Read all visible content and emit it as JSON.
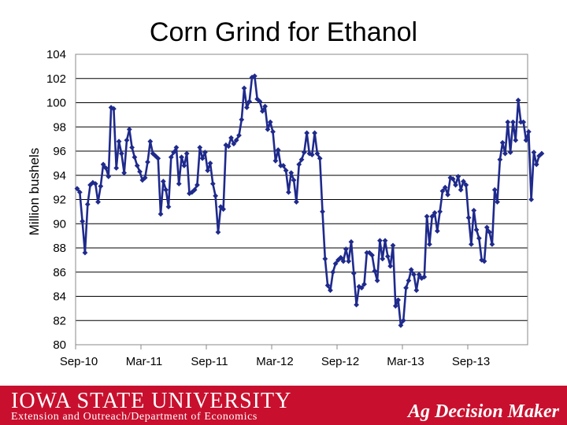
{
  "chart_data": {
    "type": "line",
    "title": "Corn Grind for Ethanol",
    "xlabel": "",
    "ylabel": "Million bushels",
    "ylim": [
      80,
      104
    ],
    "yticks": [
      80,
      82,
      84,
      86,
      88,
      90,
      92,
      94,
      96,
      98,
      100,
      102,
      104
    ],
    "xticks": [
      "Sep-10",
      "Mar-11",
      "Sep-11",
      "Mar-12",
      "Sep-12",
      "Mar-13",
      "Sep-13"
    ],
    "x_range_weeks": [
      0,
      172
    ],
    "grid": "horizontal",
    "series_color": "#1f2a8c",
    "series": [
      {
        "values": [
          92.9,
          92.6,
          90.2,
          87.6,
          91.6,
          93.2,
          93.4,
          93.3,
          91.8,
          93.1,
          94.9,
          94.6,
          93.9,
          99.6,
          99.5,
          94.6,
          96.8,
          95.8,
          94.2,
          96.9,
          97.8,
          96.3,
          95.5,
          94.8,
          94.3,
          93.6,
          93.8,
          95.1,
          96.8,
          95.8,
          95.6,
          95.4,
          90.8,
          93.5,
          92.8,
          91.4,
          95.5,
          95.9,
          96.3,
          93.3,
          95.5,
          94.8,
          95.8,
          92.5,
          92.6,
          92.8,
          93.2,
          96.3,
          95.4,
          95.9,
          94.4,
          95.0,
          93.3,
          92.3,
          89.3,
          91.4,
          91.2,
          96.5,
          96.4,
          97.1,
          96.6,
          96.9,
          97.3,
          98.6,
          101.2,
          99.6,
          100.1,
          102.1,
          102.2,
          100.3,
          100.1,
          99.3,
          99.7,
          97.8,
          98.4,
          97.6,
          95.2,
          96.1,
          94.8,
          94.8,
          94.4,
          92.6,
          94.2,
          93.6,
          91.8,
          94.9,
          95.3,
          95.9,
          97.5,
          95.8,
          95.7,
          97.5,
          95.8,
          95.4,
          91.0,
          87.1,
          84.9,
          84.5,
          86.0,
          86.7,
          87.0,
          87.2,
          86.9,
          87.9,
          86.9,
          88.5,
          85.9,
          83.3,
          84.8,
          84.7,
          85.0,
          87.6,
          87.6,
          87.4,
          86.1,
          85.3,
          88.6,
          87.1,
          88.6,
          87.3,
          86.5,
          88.2,
          83.2,
          83.7,
          81.6,
          82.0,
          84.7,
          85.3,
          86.2,
          85.8,
          84.5,
          85.8,
          85.5,
          85.6,
          90.6,
          88.3,
          90.6,
          90.9,
          89.4,
          91.0,
          92.7,
          93.0,
          92.4,
          93.8,
          93.7,
          93.2,
          93.9,
          92.8,
          93.5,
          93.2,
          90.5,
          88.3,
          91.1,
          89.5,
          88.8,
          87.0,
          86.9,
          89.7,
          89.3,
          88.3,
          92.8,
          91.8,
          95.3,
          96.7,
          95.8,
          98.4,
          95.9,
          98.4,
          96.9,
          100.2,
          98.4,
          98.4,
          96.9,
          97.6,
          92.0,
          95.9,
          94.9,
          95.6,
          95.8
        ]
      }
    ]
  },
  "footer": {
    "logo_text": "IOWA STATE UNIVERSITY",
    "department": "Extension and Outreach/Department of Economics",
    "brand": "Ag Decision Maker"
  }
}
